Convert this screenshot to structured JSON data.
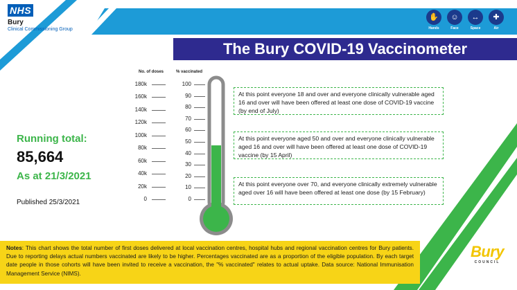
{
  "header": {
    "nhs_logo": "NHS",
    "org_name": "Bury",
    "org_sub": "Clinical Commissioning Group",
    "title": "The Bury COVID-19 Vaccinometer"
  },
  "hygiene_icons": [
    {
      "icon": "hands-icon",
      "label": "Hands",
      "glyph": "✋"
    },
    {
      "icon": "face-icon",
      "label": "Face",
      "glyph": "☺"
    },
    {
      "icon": "space-icon",
      "label": "Space",
      "glyph": "↔"
    },
    {
      "icon": "air-icon",
      "label": "Air",
      "glyph": "✚"
    }
  ],
  "scales": {
    "doses_header": "No. of doses",
    "pct_header": "% vaccinated",
    "doses_ticks": [
      "180k",
      "160k",
      "140k",
      "120k",
      "100k",
      "80k",
      "60k",
      "40k",
      "20k",
      "0"
    ],
    "pct_ticks": [
      "100",
      "90",
      "80",
      "70",
      "60",
      "50",
      "40",
      "30",
      "20",
      "10",
      "0"
    ]
  },
  "thermometer": {
    "fill_percent": 47.6,
    "fill_color": "#3cb54a",
    "outline_color": "#8c8c8c"
  },
  "callouts": [
    {
      "text": "At this point everyone 18 and over and everyone clinically vulnerable aged 16 and over will have been offered at least one dose of COVID-19 vaccine (by end of July)"
    },
    {
      "text": "At this point everyone aged 50 and over and everyone clinically vulnerable aged 16 and over will have been offered at least one dose of COVID-19 vaccine (by 15 April)"
    },
    {
      "text": "At this point everyone over 70, and everyone clinically extremely vulnerable aged over 16 will have been offered at least one dose (by 15 February)"
    }
  ],
  "running_total": {
    "label": "Running total:",
    "value": "85,664",
    "as_at": "As at 21/3/2021",
    "published": "Published 25/3/2021"
  },
  "notes": {
    "label": "Notes",
    "text": ": This chart shows the total number of first doses delivered at local vaccination centres, hospital hubs and regional vaccination centres for Bury patients. Due to reporting delays actual numbers vaccinated are likely to be higher. Percentages vaccinated are as a proportion of the eligible population. By each target date people in those cohorts will have been invited to receive a vaccination, the \"% vaccinated\" relates to actual uptake. Data source: National Immunisation Management Service (NIMS)."
  },
  "council_logo": {
    "word": "Bury",
    "sub": "COUNCIL"
  },
  "colors": {
    "nhs_blue": "#005EB8",
    "title_bar": "#2e2a8f",
    "green": "#3cb54a",
    "yellow": "#f7d417"
  }
}
